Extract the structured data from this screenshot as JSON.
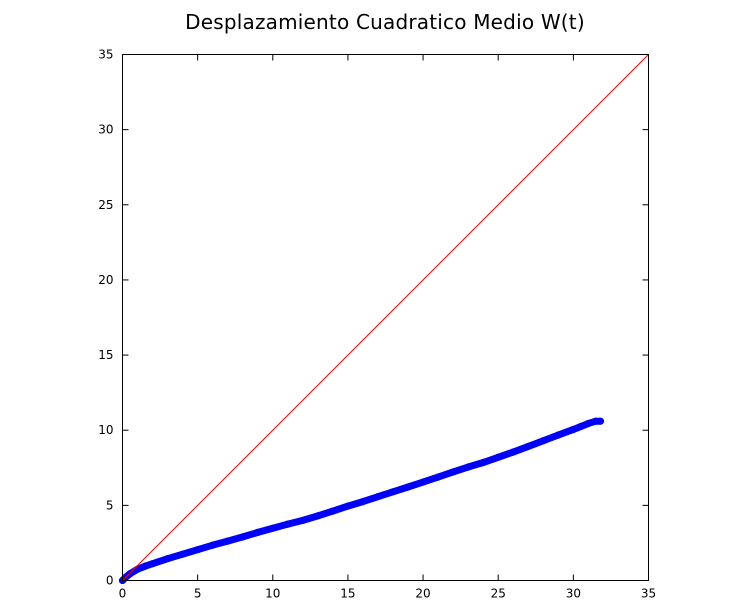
{
  "chart_data": {
    "type": "scatter",
    "title": "Desplazamiento Cuadratico Medio W(t)",
    "xlabel": "",
    "ylabel": "",
    "xlim": [
      0,
      35
    ],
    "ylim": [
      0,
      35
    ],
    "xticks": [
      0,
      5,
      10,
      15,
      20,
      25,
      30,
      35
    ],
    "yticks": [
      0,
      5,
      10,
      15,
      20,
      25,
      30,
      35
    ],
    "grid": false,
    "series": [
      {
        "kind": "points",
        "color": "#0000ff",
        "x": [
          0,
          0.2,
          0.5,
          1,
          1.5,
          2,
          3,
          4,
          5,
          6,
          7,
          8,
          9,
          10,
          11,
          12,
          13,
          14,
          15,
          16,
          17,
          18,
          19,
          20,
          21,
          22,
          23,
          24,
          25,
          26,
          27,
          28,
          29,
          30,
          30.5,
          31,
          31.5,
          31.8
        ],
        "y": [
          0,
          0.2,
          0.45,
          0.75,
          0.95,
          1.12,
          1.45,
          1.75,
          2.05,
          2.35,
          2.62,
          2.9,
          3.2,
          3.48,
          3.75,
          4.0,
          4.3,
          4.62,
          4.95,
          5.25,
          5.58,
          5.9,
          6.22,
          6.55,
          6.88,
          7.22,
          7.55,
          7.85,
          8.2,
          8.55,
          8.92,
          9.3,
          9.68,
          10.05,
          10.25,
          10.45,
          10.6,
          10.6
        ]
      },
      {
        "kind": "line",
        "color": "#ff0000",
        "x": [
          0,
          35
        ],
        "y": [
          0,
          35
        ]
      }
    ]
  }
}
